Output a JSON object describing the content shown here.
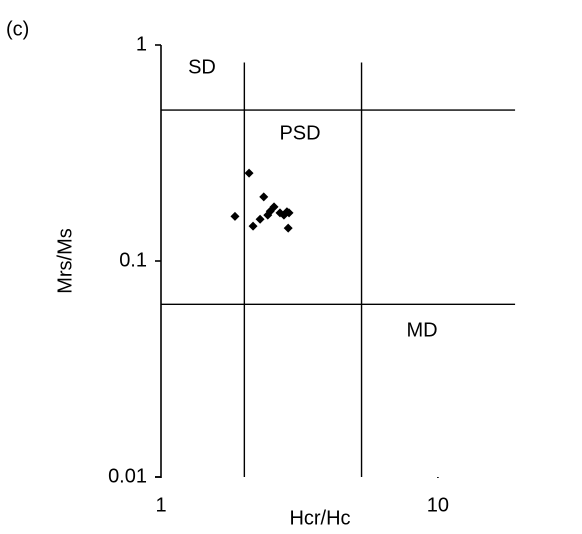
{
  "chart_data": {
    "type": "scatter",
    "panel_label": "(c)",
    "x_label": "Hcr/Hc",
    "y_label": "Mrs/Ms",
    "xscale": "log",
    "yscale": "log",
    "xlim": [
      1,
      30
    ],
    "ylim": [
      0.01,
      1
    ],
    "xticks": [
      1,
      10
    ],
    "yticks": [
      0.01,
      0.1,
      1
    ],
    "color": "#000000",
    "x": [
      1.85,
      2.08,
      2.15,
      2.28,
      2.35,
      2.43,
      2.48,
      2.56,
      2.69,
      2.78,
      2.85,
      2.88,
      2.9
    ],
    "values": [
      0.161,
      0.255,
      0.145,
      0.156,
      0.198,
      0.163,
      0.17,
      0.178,
      0.167,
      0.163,
      0.169,
      0.142,
      0.167
    ],
    "lines": [
      {
        "x": [
          1,
          19
        ],
        "y": [
          0.5,
          0.5
        ]
      },
      {
        "x": [
          1,
          19
        ],
        "y": [
          0.063,
          0.063
        ]
      },
      {
        "x": [
          2,
          2
        ],
        "y": [
          0.01,
          0.83
        ]
      },
      {
        "x": [
          5.3,
          5.3
        ],
        "y": [
          0.01,
          0.83
        ]
      }
    ],
    "annotations": [
      "SD",
      "PSD",
      "MD"
    ]
  }
}
